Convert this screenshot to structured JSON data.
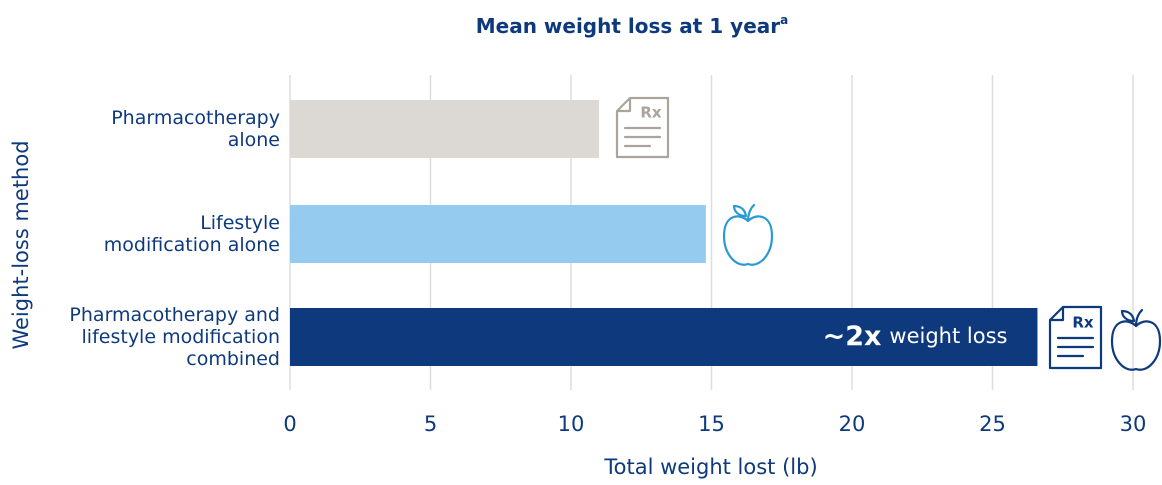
{
  "chart_data": {
    "type": "bar",
    "orientation": "horizontal",
    "title": "Mean weight loss at 1 year",
    "title_superscript": "a",
    "categories": [
      "Pharmacotherapy\nalone",
      "Lifestyle\nmodification alone",
      "Pharmacotherapy and\nlifestyle modification\ncombined"
    ],
    "values": [
      11.0,
      14.8,
      26.6
    ],
    "colors": [
      "#dcd9d5",
      "#95cbee",
      "#0e3a7d"
    ],
    "annotation": {
      "emphasis": "~2x",
      "text": "weight loss"
    },
    "xlabel": "Total weight lost (lb)",
    "ylabel": "Weight-loss method",
    "xlim": [
      0,
      30
    ],
    "xticks": [
      0,
      5,
      10,
      15,
      20,
      25,
      30
    ],
    "grid": true
  }
}
